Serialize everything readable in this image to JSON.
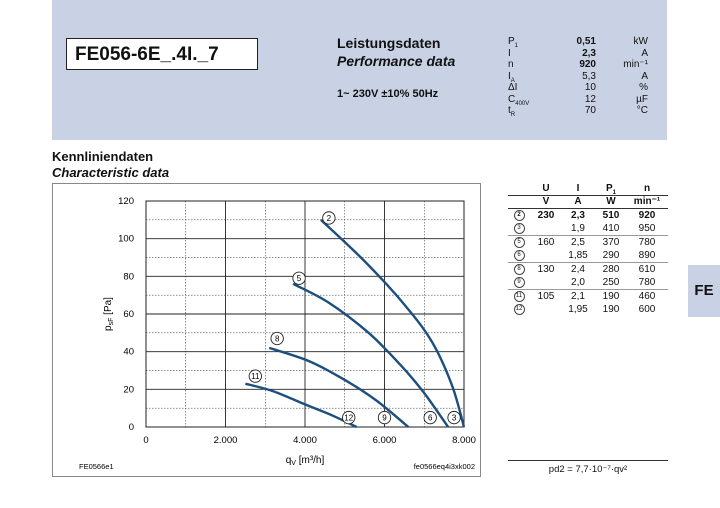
{
  "header": {
    "model": "FE056-6E_.4I._7",
    "perf_title": "Leistungsdaten",
    "perf_subtitle": "Performance data",
    "voltage": "1~ 230V ±10% 50Hz",
    "specs": [
      {
        "sym": "P",
        "sub": "1",
        "value": "0,51",
        "unit": "kW",
        "bold": true
      },
      {
        "sym": "I",
        "sub": "",
        "value": "2,3",
        "unit": "A",
        "bold": true
      },
      {
        "sym": "n",
        "sub": "",
        "value": "920",
        "unit": "min⁻¹",
        "bold": true
      },
      {
        "sym": "I",
        "sub": "A",
        "value": "5,3",
        "unit": "A",
        "bold": false
      },
      {
        "sym": "ΔI",
        "sub": "",
        "value": "10",
        "unit": "%",
        "bold": false
      },
      {
        "sym": "C",
        "sub": "400V",
        "value": "12",
        "unit": "µF",
        "bold": false
      },
      {
        "sym": "t",
        "sub": "R",
        "value": "70",
        "unit": "°C",
        "bold": false
      }
    ]
  },
  "section": {
    "title_de": "Kennliniendaten",
    "title_en": "Characteristic data"
  },
  "chart_data": {
    "type": "line",
    "xlabel": "q",
    "xlabel_sub": "V",
    "xlabel_unit": "[m³/h]",
    "ylabel": "p",
    "ylabel_sub": "sF",
    "ylabel_unit": "[Pa]",
    "xlim": [
      0,
      8000
    ],
    "ylim": [
      0,
      120
    ],
    "xticks": [
      0,
      2000,
      4000,
      6000,
      8000
    ],
    "xtick_labels": [
      "0",
      "2.000",
      "4.000",
      "6.000",
      "8.000"
    ],
    "yticks": [
      0,
      20,
      40,
      60,
      80,
      100,
      120
    ],
    "grid": true,
    "footer_left": "FE0566e1",
    "footer_right": "fe0566eq4i3xk002",
    "series": [
      {
        "name": "2",
        "x": [
          4400,
          5500,
          6500,
          7200,
          7700,
          8000
        ],
        "y": [
          110,
          88,
          65,
          45,
          22,
          0
        ]
      },
      {
        "name": "5",
        "x": [
          3700,
          4600,
          5600,
          6400,
          7000,
          7600
        ],
        "y": [
          76,
          66,
          50,
          33,
          18,
          0
        ]
      },
      {
        "name": "8",
        "x": [
          3100,
          4100,
          5000,
          5800,
          6600
        ],
        "y": [
          42,
          35,
          25,
          14,
          0
        ]
      },
      {
        "name": "11",
        "x": [
          2500,
          3200,
          4000,
          4700,
          5300
        ],
        "y": [
          23,
          19,
          12,
          6,
          0
        ]
      }
    ],
    "markers": [
      {
        "label": "2",
        "x": 4600,
        "y": 111
      },
      {
        "label": "5",
        "x": 3850,
        "y": 79
      },
      {
        "label": "8",
        "x": 3300,
        "y": 47
      },
      {
        "label": "11",
        "x": 2750,
        "y": 27
      },
      {
        "label": "12",
        "x": 5100,
        "y": 5
      },
      {
        "label": "9",
        "x": 6000,
        "y": 5
      },
      {
        "label": "6",
        "x": 7150,
        "y": 5
      },
      {
        "label": "3",
        "x": 7750,
        "y": 5
      }
    ]
  },
  "table": {
    "headers": [
      "U",
      "I",
      "P",
      "n"
    ],
    "p_sub": "1",
    "units": [
      "V",
      "A",
      "W",
      "min⁻¹"
    ],
    "rows": [
      {
        "pt": "2",
        "u": "230",
        "i": "2,3",
        "p": "510",
        "n": "920",
        "bold": true,
        "sep": false
      },
      {
        "pt": "3",
        "u": "",
        "i": "1,9",
        "p": "410",
        "n": "950",
        "bold": false,
        "sep": true
      },
      {
        "pt": "5",
        "u": "160",
        "i": "2,5",
        "p": "370",
        "n": "780",
        "bold": false,
        "sep": false
      },
      {
        "pt": "6",
        "u": "",
        "i": "1,85",
        "p": "290",
        "n": "890",
        "bold": false,
        "sep": true
      },
      {
        "pt": "8",
        "u": "130",
        "i": "2,4",
        "p": "280",
        "n": "610",
        "bold": false,
        "sep": false
      },
      {
        "pt": "9",
        "u": "",
        "i": "2,0",
        "p": "250",
        "n": "780",
        "bold": false,
        "sep": true
      },
      {
        "pt": "11",
        "u": "105",
        "i": "2,1",
        "p": "190",
        "n": "460",
        "bold": false,
        "sep": false
      },
      {
        "pt": "12",
        "u": "",
        "i": "1,95",
        "p": "190",
        "n": "600",
        "bold": false,
        "sep": false
      }
    ],
    "formula": "pd2 = 7,7·10⁻⁷·qv²"
  },
  "side_tab": "FE"
}
